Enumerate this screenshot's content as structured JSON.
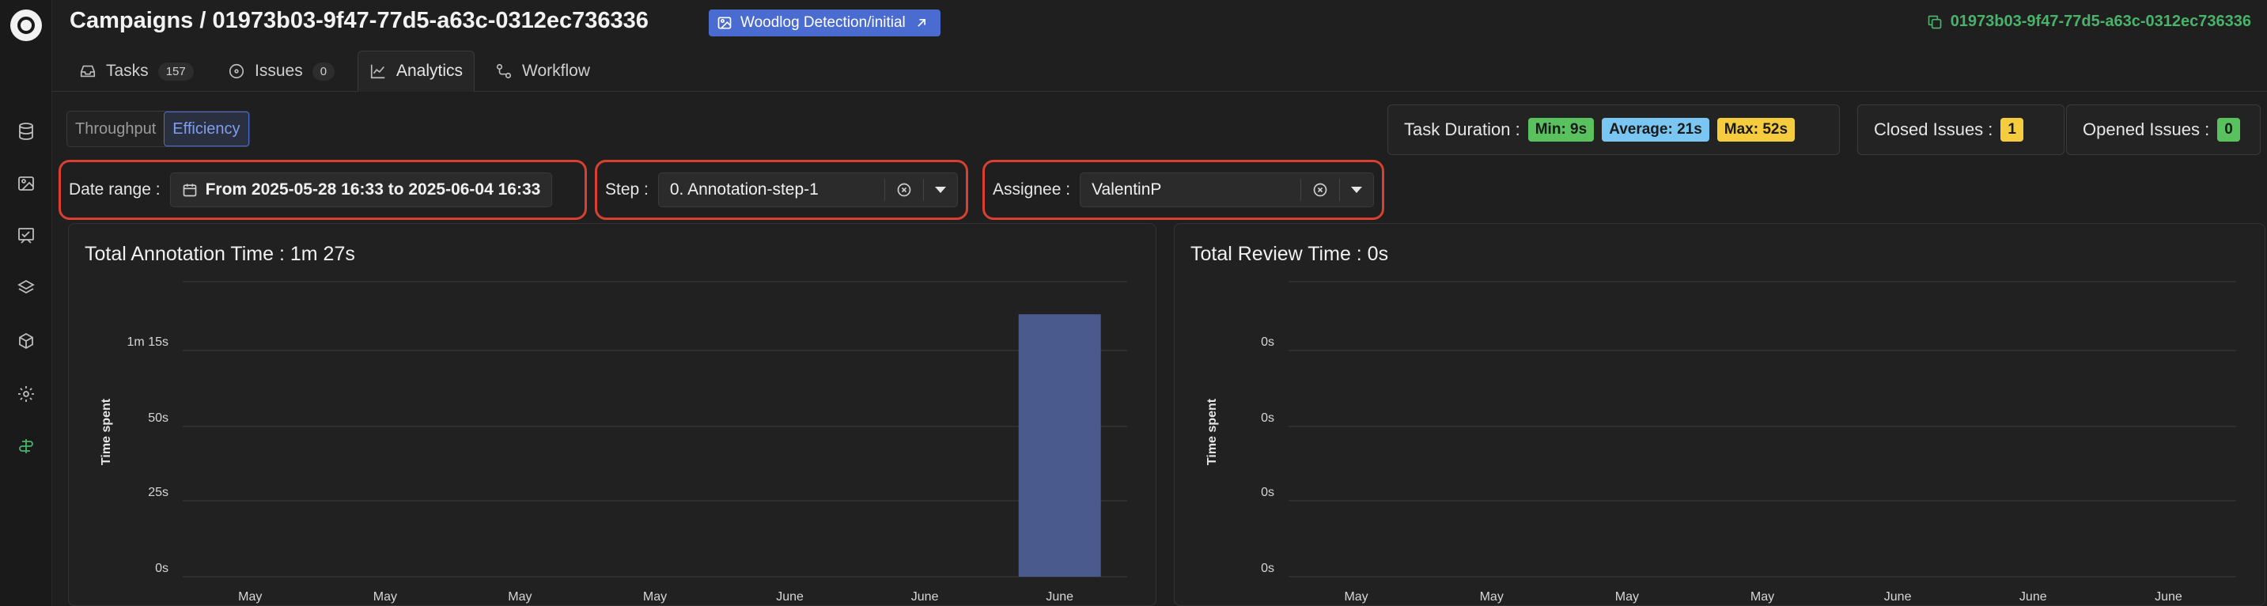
{
  "header": {
    "title": "Campaigns / 01973b03-9f47-77d5-a63c-0312ec736336",
    "dataset_badge": "Woodlog Detection/initial",
    "copy_id": "01973b03-9f47-77d5-a63c-0312ec736336"
  },
  "sidebar": {
    "icons": [
      "datasets-icon",
      "images-icon",
      "annotation-icon",
      "layers-icon",
      "models-icon",
      "settings-icon",
      "deploy-icon"
    ],
    "active": "deploy-icon"
  },
  "tabs": [
    {
      "label": "Tasks",
      "count": "157",
      "icon": "inbox-icon"
    },
    {
      "label": "Issues",
      "count": "0",
      "icon": "issue-icon"
    },
    {
      "label": "Analytics",
      "icon": "chart-line-icon",
      "active": true
    },
    {
      "label": "Workflow",
      "icon": "workflow-icon"
    }
  ],
  "view_toggle": {
    "options": [
      "Throughput",
      "Efficiency"
    ],
    "selected": "Efficiency"
  },
  "stats": {
    "duration_label": "Task Duration :",
    "min": "Min: 9s",
    "average": "Average: 21s",
    "max": "Max: 52s",
    "closed_label": "Closed Issues :",
    "closed_value": "1",
    "opened_label": "Opened Issues :",
    "opened_value": "0",
    "colors": {
      "min": "#59c25e",
      "average": "#79c6f2",
      "max": "#f4cc3d"
    }
  },
  "filters": {
    "date_label": "Date range :",
    "date_value": "From 2025-05-28 16:33 to 2025-06-04 16:33",
    "step_label": "Step :",
    "step_value": "0. Annotation-step-1",
    "assignee_label": "Assignee :",
    "assignee_value": "ValentinP"
  },
  "chart_data": [
    {
      "type": "bar",
      "title": "Total Annotation Time : 1m 27s",
      "ylabel": "Time spent",
      "y_tick_labels": [
        "0s",
        "25s",
        "50s",
        "1m 15s"
      ],
      "x_tick_labels": [
        "May",
        "May",
        "May",
        "May",
        "June",
        "June",
        "June"
      ],
      "values_seconds": [
        0,
        0,
        0,
        0,
        0,
        0,
        87
      ],
      "bar_color": "#4a5a8c"
    },
    {
      "type": "bar",
      "title": "Total Review Time : 0s",
      "ylabel": "Time spent",
      "y_tick_labels": [
        "0s",
        "0s",
        "0s",
        "0s"
      ],
      "x_tick_labels": [
        "May",
        "May",
        "May",
        "May",
        "June",
        "June",
        "June"
      ],
      "values_seconds": [
        0,
        0,
        0,
        0,
        0,
        0,
        0
      ],
      "bar_color": "#4a5a8c"
    }
  ]
}
